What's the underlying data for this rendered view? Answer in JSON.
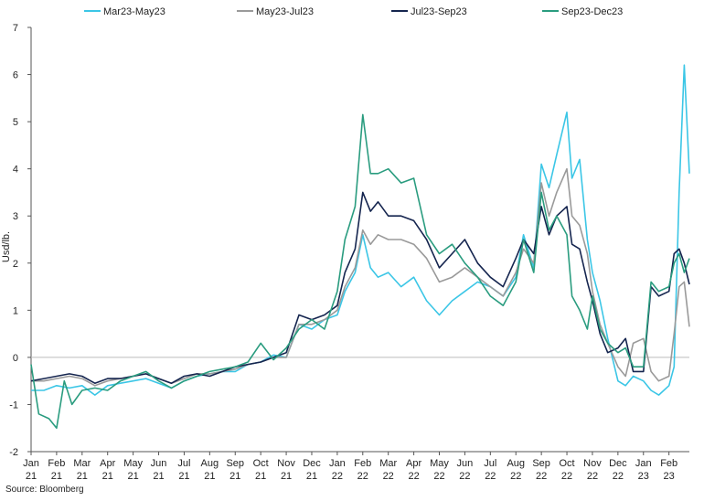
{
  "chart_data": {
    "type": "line",
    "title": "",
    "xlabel": "",
    "ylabel": "Usd/lb.",
    "ylim": [
      -2,
      7
    ],
    "y_ticks": [
      -2,
      -1,
      0,
      1,
      2,
      3,
      4,
      5,
      6,
      7
    ],
    "x_tick_labels": [
      [
        "Jan",
        "21"
      ],
      [
        "Feb",
        "21"
      ],
      [
        "Mar",
        "21"
      ],
      [
        "Apr",
        "21"
      ],
      [
        "May",
        "21"
      ],
      [
        "Jun",
        "21"
      ],
      [
        "Jul",
        "21"
      ],
      [
        "Aug",
        "21"
      ],
      [
        "Sep",
        "21"
      ],
      [
        "Oct",
        "21"
      ],
      [
        "Nov",
        "21"
      ],
      [
        "Dec",
        "21"
      ],
      [
        "Jan",
        "22"
      ],
      [
        "Feb",
        "22"
      ],
      [
        "Mar",
        "22"
      ],
      [
        "Apr",
        "22"
      ],
      [
        "May",
        "22"
      ],
      [
        "Jun",
        "22"
      ],
      [
        "Jul",
        "22"
      ],
      [
        "Aug",
        "22"
      ],
      [
        "Sep",
        "22"
      ],
      [
        "Oct",
        "22"
      ],
      [
        "Nov",
        "22"
      ],
      [
        "Dec",
        "22"
      ],
      [
        "Jan",
        "23"
      ],
      [
        "Feb",
        "23"
      ]
    ],
    "x_periods": [
      "Jan21",
      "Feb21",
      "Mar21",
      "Apr21",
      "May21",
      "Jun21",
      "Jul21",
      "Aug21",
      "Sep21",
      "Oct21",
      "Nov21",
      "Dec21",
      "Jan22",
      "Feb22",
      "Mar22",
      "Apr22",
      "May22",
      "Jun22",
      "Jul22",
      "Aug22",
      "Sep22",
      "Oct22",
      "Nov22",
      "Dec22",
      "Jan23",
      "Feb23"
    ],
    "legend_position": "top",
    "grid": false,
    "series": [
      {
        "name": "Mar23-May23",
        "color": "#3bc6e6",
        "x": [
          0,
          0.5,
          1,
          1.5,
          2,
          2.5,
          3,
          3.5,
          4,
          4.5,
          5,
          5.5,
          6,
          6.5,
          7,
          7.5,
          8,
          8.5,
          9,
          9.5,
          10,
          10.5,
          11,
          11.5,
          12,
          12.3,
          12.7,
          13,
          13.3,
          13.6,
          14,
          14.5,
          15,
          15.5,
          16,
          16.5,
          17,
          17.5,
          18,
          18.5,
          19,
          19.3,
          19.7,
          20,
          20.3,
          20.6,
          21,
          21.2,
          21.5,
          21.8,
          22,
          22.3,
          22.6,
          23,
          23.3,
          23.6,
          24,
          24.3,
          24.6,
          25,
          25.2,
          25.4,
          25.6,
          25.8
        ],
        "values": [
          -0.7,
          -0.7,
          -0.6,
          -0.65,
          -0.6,
          -0.8,
          -0.6,
          -0.55,
          -0.5,
          -0.45,
          -0.55,
          -0.65,
          -0.5,
          -0.4,
          -0.35,
          -0.3,
          -0.3,
          -0.15,
          -0.1,
          0.05,
          0,
          0.7,
          0.6,
          0.8,
          0.9,
          1.4,
          1.8,
          2.6,
          1.9,
          1.7,
          1.8,
          1.5,
          1.7,
          1.2,
          0.9,
          1.2,
          1.4,
          1.6,
          1.5,
          1.3,
          1.7,
          2.6,
          1.9,
          4.1,
          3.6,
          4.3,
          5.2,
          3.8,
          4.2,
          2.5,
          1.8,
          1.2,
          0.4,
          -0.5,
          -0.6,
          -0.4,
          -0.5,
          -0.7,
          -0.8,
          -0.6,
          -0.2,
          3.5,
          6.2,
          3.9
        ]
      },
      {
        "name": "May23-Jul23",
        "color": "#9a9a9a",
        "x": [
          0,
          0.5,
          1,
          1.5,
          2,
          2.5,
          3,
          3.5,
          4,
          4.5,
          5,
          5.5,
          6,
          6.5,
          7,
          7.5,
          8,
          8.5,
          9,
          9.5,
          10,
          10.5,
          11,
          11.5,
          12,
          12.3,
          12.7,
          13,
          13.3,
          13.6,
          14,
          14.5,
          15,
          15.5,
          16,
          16.5,
          17,
          17.5,
          18,
          18.5,
          19,
          19.3,
          19.7,
          20,
          20.3,
          20.6,
          21,
          21.2,
          21.5,
          21.8,
          22,
          22.3,
          22.6,
          23,
          23.3,
          23.6,
          24,
          24.3,
          24.6,
          25,
          25.2,
          25.4,
          25.6,
          25.8
        ],
        "values": [
          -0.5,
          -0.5,
          -0.45,
          -0.4,
          -0.45,
          -0.6,
          -0.5,
          -0.45,
          -0.4,
          -0.35,
          -0.45,
          -0.55,
          -0.45,
          -0.35,
          -0.35,
          -0.3,
          -0.25,
          -0.15,
          -0.1,
          0,
          0,
          0.7,
          0.7,
          0.8,
          1.0,
          1.5,
          1.9,
          2.7,
          2.4,
          2.6,
          2.5,
          2.5,
          2.4,
          2.1,
          1.6,
          1.7,
          1.9,
          1.7,
          1.5,
          1.3,
          1.8,
          2.3,
          2.0,
          3.7,
          3.0,
          3.5,
          4.0,
          3.0,
          2.8,
          2.2,
          1.4,
          0.7,
          0.3,
          -0.2,
          -0.4,
          0.3,
          0.4,
          -0.3,
          -0.5,
          -0.4,
          0.5,
          1.5,
          1.6,
          0.65
        ]
      },
      {
        "name": "Jul23-Sep23",
        "color": "#15254f",
        "x": [
          0,
          0.5,
          1,
          1.5,
          2,
          2.5,
          3,
          3.5,
          4,
          4.5,
          5,
          5.5,
          6,
          6.5,
          7,
          7.5,
          8,
          8.5,
          9,
          9.5,
          10,
          10.5,
          11,
          11.5,
          12,
          12.3,
          12.7,
          13,
          13.3,
          13.6,
          14,
          14.5,
          15,
          15.5,
          16,
          16.5,
          17,
          17.5,
          18,
          18.5,
          19,
          19.3,
          19.7,
          20,
          20.3,
          20.6,
          21,
          21.2,
          21.5,
          21.8,
          22,
          22.3,
          22.6,
          23,
          23.3,
          23.6,
          24,
          24.3,
          24.6,
          25,
          25.2,
          25.4,
          25.6,
          25.8
        ],
        "values": [
          -0.5,
          -0.45,
          -0.4,
          -0.35,
          -0.4,
          -0.55,
          -0.45,
          -0.45,
          -0.4,
          -0.35,
          -0.45,
          -0.55,
          -0.4,
          -0.35,
          -0.4,
          -0.3,
          -0.2,
          -0.15,
          -0.1,
          0,
          0.1,
          0.9,
          0.8,
          0.9,
          1.1,
          1.8,
          2.3,
          3.5,
          3.1,
          3.3,
          3.0,
          3.0,
          2.9,
          2.5,
          1.9,
          2.2,
          2.5,
          2.0,
          1.7,
          1.5,
          2.1,
          2.5,
          2.2,
          3.2,
          2.6,
          3.0,
          3.2,
          2.4,
          2.3,
          1.6,
          1.2,
          0.5,
          0.1,
          0.2,
          0.4,
          -0.3,
          -0.3,
          1.5,
          1.3,
          1.4,
          2.2,
          2.3,
          2.0,
          1.55
        ]
      },
      {
        "name": "Sep23-Dec23",
        "color": "#2a9c7f",
        "x": [
          0,
          0.3,
          0.7,
          1,
          1.3,
          1.6,
          2,
          2.5,
          3,
          3.5,
          4,
          4.5,
          5,
          5.5,
          6,
          6.5,
          7,
          7.5,
          8,
          8.5,
          9,
          9.5,
          10,
          10.5,
          11,
          11.5,
          12,
          12.3,
          12.7,
          13,
          13.3,
          13.6,
          14,
          14.5,
          15,
          15.5,
          16,
          16.5,
          17,
          17.5,
          18,
          18.5,
          19,
          19.3,
          19.7,
          20,
          20.3,
          20.6,
          21,
          21.2,
          21.5,
          21.8,
          22,
          22.3,
          22.6,
          23,
          23.3,
          23.6,
          24,
          24.3,
          24.6,
          25,
          25.2,
          25.4,
          25.6,
          25.8
        ],
        "values": [
          -0.15,
          -1.2,
          -1.3,
          -1.5,
          -0.5,
          -1.0,
          -0.7,
          -0.65,
          -0.7,
          -0.5,
          -0.4,
          -0.3,
          -0.5,
          -0.65,
          -0.5,
          -0.4,
          -0.3,
          -0.25,
          -0.2,
          -0.1,
          0.3,
          -0.05,
          0.2,
          0.6,
          0.8,
          0.6,
          1.4,
          2.5,
          3.2,
          5.15,
          3.9,
          3.9,
          4.0,
          3.7,
          3.8,
          2.6,
          2.2,
          2.4,
          2.0,
          1.7,
          1.3,
          1.1,
          1.6,
          2.5,
          1.8,
          3.5,
          2.7,
          3.0,
          2.6,
          1.3,
          1.0,
          0.6,
          1.3,
          0.6,
          0.3,
          0.1,
          0.2,
          -0.2,
          -0.2,
          1.6,
          1.4,
          1.5,
          2.0,
          2.2,
          1.8,
          2.1
        ]
      }
    ],
    "source_note": "Source: Bloomberg"
  }
}
